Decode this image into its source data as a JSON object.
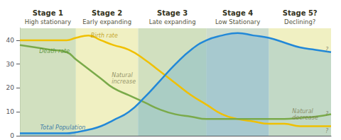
{
  "chart_data": {
    "type": "line",
    "x": [
      0,
      0.05,
      0.1,
      0.15,
      0.18,
      0.22,
      0.26,
      0.3,
      0.35,
      0.4,
      0.45,
      0.5,
      0.55,
      0.6,
      0.65,
      0.7,
      0.75,
      0.8,
      0.85,
      0.9,
      0.95,
      1.0
    ],
    "series": [
      {
        "name": "Birth rate",
        "color": "#f0c000",
        "values": [
          40,
          40,
          40,
          40,
          41,
          42,
          40,
          38,
          36,
          32,
          27,
          22,
          17,
          13,
          9,
          7,
          6,
          5,
          5,
          4,
          4,
          4
        ]
      },
      {
        "name": "Death rate",
        "color": "#7aaa4a",
        "values": [
          38,
          37,
          36,
          35,
          32,
          28,
          24,
          20,
          17,
          14,
          11,
          9,
          8,
          7,
          7,
          7,
          7,
          7,
          7,
          7.5,
          8,
          9
        ]
      },
      {
        "name": "Total Population",
        "color": "#2288d8",
        "values": [
          1,
          1,
          1,
          1,
          1.5,
          2.5,
          4,
          6.5,
          10,
          16,
          23,
          30,
          36,
          40,
          42,
          43,
          42,
          41,
          39,
          37,
          36,
          35
        ]
      }
    ],
    "xlim": [
      0,
      1
    ],
    "ylim": [
      0,
      45
    ],
    "yticks": [
      0,
      10,
      20,
      30,
      40
    ],
    "tick_labels": "y",
    "grid": false,
    "stages": [
      {
        "label": "Stage 1",
        "sublabel": "High stationary",
        "x_start": 0.0,
        "x_end": 0.18,
        "color": "#ccddb8"
      },
      {
        "label": "Stage 2",
        "sublabel": "Early expanding",
        "x_start": 0.18,
        "x_end": 0.38,
        "color": "#eeeebb"
      },
      {
        "label": "Stage 3",
        "sublabel": "Late expanding",
        "x_start": 0.38,
        "x_end": 0.6,
        "color": "#ccddb8"
      },
      {
        "label": "Stage 4",
        "sublabel": "Low Stationary",
        "x_start": 0.6,
        "x_end": 0.8,
        "color": "#c8d8c8"
      },
      {
        "label": "Stage 5?",
        "sublabel": "Declining?",
        "x_start": 0.8,
        "x_end": 1.0,
        "color": "#eeeebb"
      }
    ],
    "annotations": [
      {
        "text": "Birth rate",
        "x": 0.228,
        "y": 41.8,
        "color": "#b89000"
      },
      {
        "text": "Death rate",
        "x": 0.062,
        "y": 35.5,
        "color": "#4a8a2a"
      },
      {
        "text": "Natural\nincrease",
        "x": 0.295,
        "y": 24,
        "color": "#7a7a50"
      },
      {
        "text": "Natural\ndecrease",
        "x": 0.875,
        "y": 9,
        "color": "#7a7a50"
      },
      {
        "text": "Total Population",
        "x": 0.065,
        "y": 3.5,
        "color": "#1060a0"
      },
      {
        "text": "?",
        "x": 0.982,
        "y": 36,
        "color": "#7a7a60"
      },
      {
        "text": "?",
        "x": 0.982,
        "y": 9,
        "color": "#7a7a60"
      },
      {
        "text": "?",
        "x": 0.982,
        "y": 2,
        "color": "#7a7a60"
      }
    ]
  }
}
